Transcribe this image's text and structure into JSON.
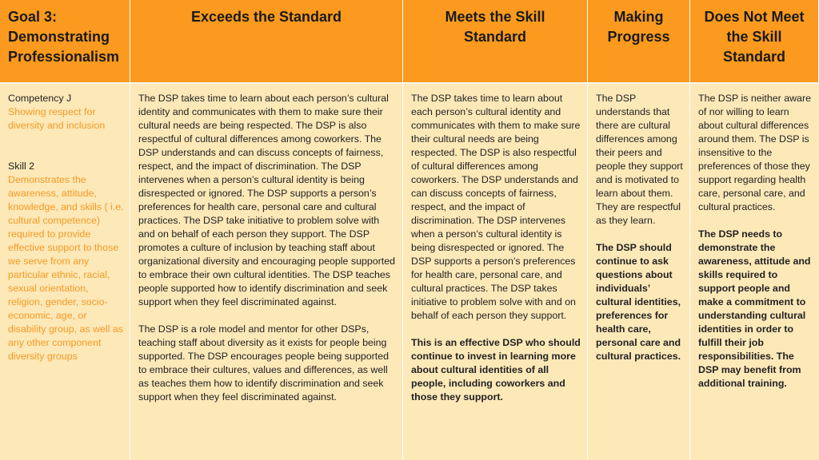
{
  "header": {
    "goal": "Goal 3: Demonstrating Professionalism",
    "exceeds": "Exceeds the Standard",
    "meets": "Meets the Skill Standard",
    "making": "Making Progress",
    "not_meet": "Does Not Meet the Skill Standard"
  },
  "goal_col": {
    "competency_label": "Competency J",
    "competency_desc": "Showing respect for diversity and inclusion",
    "skill_label": "Skill 2",
    "skill_desc": "Demonstrates the awareness, attitude, knowledge, and skills ( i.e. cultural competence) required to provide effective support to those we serve from any particular ethnic, racial, sexual orientation, religion, gender, socio-economic, age, or disability group, as well as any other component diversity groups"
  },
  "exceeds_col": {
    "para1": "The DSP takes time to learn about each person’s cultural identity and communicates with them to make sure their cultural needs are being respected. The DSP is also respectful of cultural differences among coworkers. The DSP understands and can discuss concepts of fairness, respect, and the impact of discrimination. The DSP intervenes when a person’s cultural identity is being disrespected or ignored. The DSP supports a person’s preferences for health care, personal care and cultural practices. The DSP take initiative to problem solve with and on behalf of each person they support. The DSP promotes a culture of inclusion by teaching staff about organizational diversity and encouraging people supported to embrace their own cultural identities. The DSP teaches people supported how to identify discrimination and seek support when they feel discriminated against.",
    "para2": "The DSP is a role model and mentor for other DSPs, teaching staff about diversity as it exists for people being supported.  The DSP encourages people being supported to embrace their cultures, values and differences, as well as teaches them how to identify discrimination and seek support when they feel discriminated against."
  },
  "meets_col": {
    "para1": "The DSP takes time to learn about each person’s cultural identity and communicates with them to make sure their cultural needs are being respected. The DSP is also respectful of cultural differences among coworkers. The DSP understands and can discuss concepts of fairness, respect, and the impact of discrimination. The DSP intervenes when a person’s cultural identity is being disrespected or ignored. The DSP supports a person’s preferences for health care, personal care, and cultural practices. The DSP takes initiative to problem solve with and on behalf of each person they support.",
    "para2": "This is an effective DSP who should continue to invest in learning more about cultural identities of all people, including coworkers and those they support."
  },
  "making_col": {
    "para1": "The DSP understands that there are cultural differences among their peers and people they support and is motivated to learn about them. They are respectful as they learn.",
    "para2": "The DSP should continue to ask questions about individuals’ cultural identities, preferences for health care, personal care and cultural practices."
  },
  "not_meet_col": {
    "para1": "The DSP is neither aware of nor willing to learn about cultural differences around them. The DSP is insensitive to the preferences of those they support regarding health care, personal care, and cultural practices.",
    "para2": "The DSP needs to demonstrate the awareness, attitude and skills required to support people and make a commitment to understanding cultural identities in order to fulfill their job responsibilities. The DSP may benefit from additional training."
  },
  "colors": {
    "header_bg": "#fb9a1e",
    "body_bg": "#fde8b8",
    "accent_text": "#f59a23"
  }
}
